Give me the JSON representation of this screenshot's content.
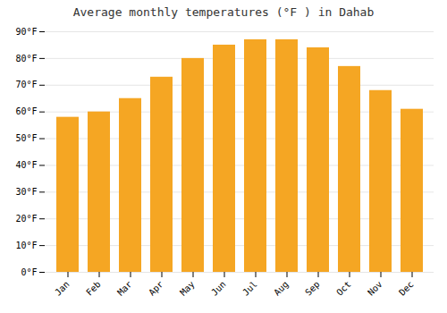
{
  "chart_data": {
    "type": "bar",
    "title": "Average monthly temperatures (°F ) in Dahab",
    "categories": [
      "Jan",
      "Feb",
      "Mar",
      "Apr",
      "May",
      "Jun",
      "Jul",
      "Aug",
      "Sep",
      "Oct",
      "Nov",
      "Dec"
    ],
    "values": [
      58,
      60,
      65,
      73,
      80,
      85,
      87,
      87,
      84,
      77,
      68,
      61
    ],
    "color": "#F5A623",
    "ylim": [
      0,
      90
    ],
    "yticks": [
      {
        "value": 0,
        "label": "0°F"
      },
      {
        "value": 10,
        "label": "10°F"
      },
      {
        "value": 20,
        "label": "20°F"
      },
      {
        "value": 30,
        "label": "30°F"
      },
      {
        "value": 40,
        "label": "40°F"
      },
      {
        "value": 50,
        "label": "50°F"
      },
      {
        "value": 60,
        "label": "60°F"
      },
      {
        "value": 70,
        "label": "70°F"
      },
      {
        "value": 80,
        "label": "80°F"
      },
      {
        "value": 90,
        "label": "90°F"
      }
    ],
    "grid": true
  }
}
